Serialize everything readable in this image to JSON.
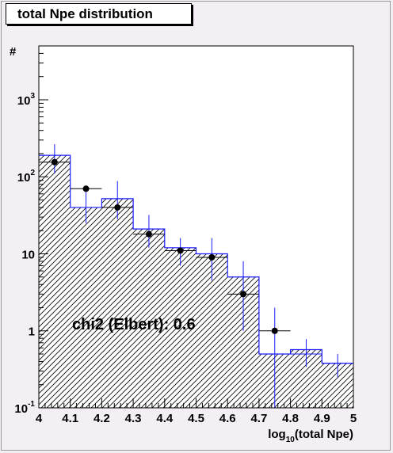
{
  "chart_data": {
    "type": "bar",
    "title": "total Npe distribution",
    "xlabel": {
      "main": "log",
      "sub": "10",
      "rest": "(total Npe)"
    },
    "ylabel": "#",
    "xlim": [
      4,
      5
    ],
    "ylim": [
      0.1,
      5000
    ],
    "yscale": "log",
    "grid": false,
    "x_ticks": [
      "4",
      "4.1",
      "4.2",
      "4.3",
      "4.4",
      "4.5",
      "4.6",
      "4.7",
      "4.8",
      "4.9",
      "5"
    ],
    "y_ticks": [
      {
        "base": "10",
        "exp": "-1",
        "value": 0.1
      },
      {
        "base": "1",
        "exp": "",
        "value": 1
      },
      {
        "base": "10",
        "exp": "",
        "value": 10
      },
      {
        "base": "10",
        "exp": "2",
        "value": 100
      },
      {
        "base": "10",
        "exp": "3",
        "value": 1000
      }
    ],
    "bin_edges": [
      4.0,
      4.1,
      4.2,
      4.3,
      4.4,
      4.5,
      4.6,
      4.7,
      4.8,
      4.9,
      5.0
    ],
    "series": [
      {
        "kind": "histogram",
        "style": "hatched",
        "color": "#1a1aff",
        "values": [
          190,
          40,
          52,
          21,
          12,
          10,
          5,
          0.5,
          0.57,
          0.38
        ]
      },
      {
        "kind": "points",
        "color": "#1a1aff",
        "points": [
          {
            "x": 4.05,
            "y": 155,
            "ylo": 110,
            "yhi": 265,
            "marker": true
          },
          {
            "x": 4.15,
            "y": 70,
            "ylo": 25,
            "yhi": 70,
            "marker": true
          },
          {
            "x": 4.25,
            "y": 40,
            "ylo": 28,
            "yhi": 88,
            "marker": true
          },
          {
            "x": 4.35,
            "y": 18,
            "ylo": 12,
            "yhi": 32,
            "marker": true
          },
          {
            "x": 4.45,
            "y": 11,
            "ylo": 7,
            "yhi": 16,
            "marker": true
          },
          {
            "x": 4.55,
            "y": 9,
            "ylo": 4.5,
            "yhi": 16,
            "marker": true
          },
          {
            "x": 4.65,
            "y": 3,
            "ylo": 1,
            "yhi": 8,
            "marker": true
          },
          {
            "x": 4.75,
            "y": 1,
            "ylo": 0.1,
            "yhi": 2,
            "marker": true
          },
          {
            "x": 4.85,
            "y": 0.5,
            "ylo": 0.34,
            "yhi": 0.78,
            "marker": false
          },
          {
            "x": 4.95,
            "y": 0.38,
            "ylo": 0.25,
            "yhi": 0.5,
            "marker": false
          }
        ]
      }
    ],
    "annotation": "chi2 (Elbert): 0.6"
  }
}
